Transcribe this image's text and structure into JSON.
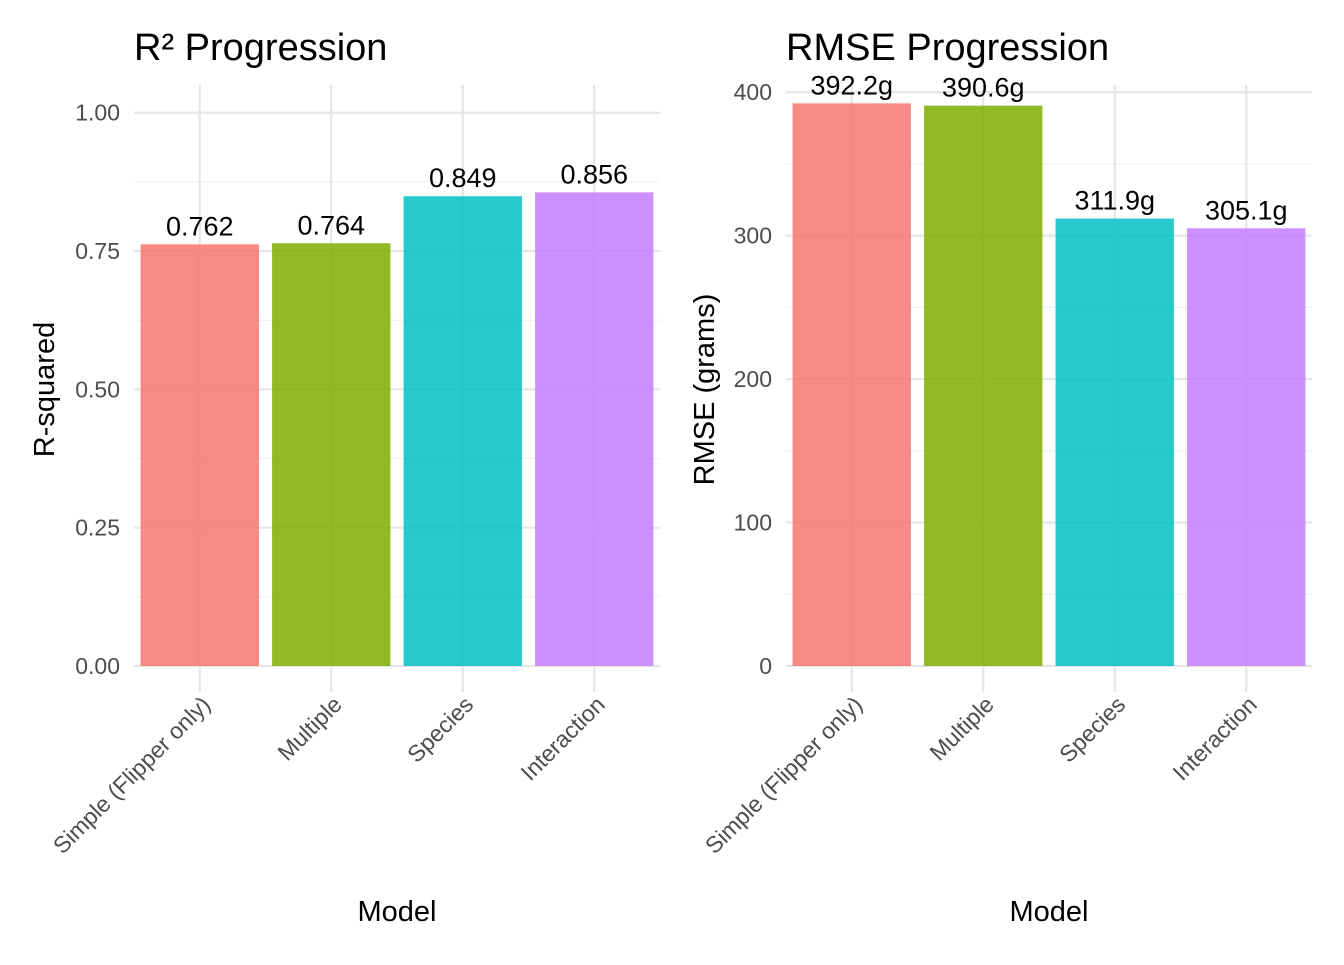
{
  "chart_data": [
    {
      "type": "bar",
      "title": "R² Progression",
      "xlabel": "Model",
      "ylabel": "R-squared",
      "categories": [
        "Simple (Flipper only)",
        "Multiple",
        "Species",
        "Interaction"
      ],
      "values": [
        0.762,
        0.764,
        0.849,
        0.856
      ],
      "data_labels": [
        "0.762",
        "0.764",
        "0.849",
        "0.856"
      ],
      "colors": [
        "#F8766D",
        "#7CAE00",
        "#00BFC4",
        "#C77CFF"
      ],
      "ylim": [
        0,
        1.05
      ],
      "y_ticks": [
        0,
        0.25,
        0.5,
        0.75,
        1.0
      ],
      "y_tick_labels": [
        "0.00",
        "0.25",
        "0.50",
        "0.75",
        "1.00"
      ],
      "grid": true,
      "legend": "none"
    },
    {
      "type": "bar",
      "title": "RMSE Progression",
      "xlabel": "Model",
      "ylabel": "RMSE (grams)",
      "categories": [
        "Simple (Flipper only)",
        "Multiple",
        "Species",
        "Interaction"
      ],
      "values": [
        392.2,
        390.6,
        311.9,
        305.1
      ],
      "data_labels": [
        "392.2g",
        "390.6g",
        "311.9g",
        "305.1g"
      ],
      "colors": [
        "#F8766D",
        "#7CAE00",
        "#00BFC4",
        "#C77CFF"
      ],
      "ylim": [
        0,
        405
      ],
      "y_ticks": [
        0,
        100,
        200,
        300,
        400
      ],
      "y_tick_labels": [
        "0",
        "100",
        "200",
        "300",
        "400"
      ],
      "grid": true,
      "legend": "none"
    }
  ]
}
